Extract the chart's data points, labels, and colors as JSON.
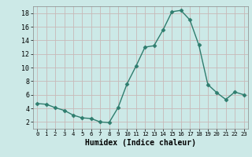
{
  "x": [
    0,
    1,
    2,
    3,
    4,
    5,
    6,
    7,
    8,
    9,
    10,
    11,
    12,
    13,
    14,
    15,
    16,
    17,
    18,
    19,
    20,
    21,
    22,
    23
  ],
  "y": [
    4.7,
    4.6,
    4.1,
    3.7,
    3.0,
    2.6,
    2.5,
    2.0,
    1.9,
    4.1,
    7.6,
    10.2,
    13.0,
    13.2,
    15.5,
    18.2,
    18.4,
    17.0,
    13.3,
    7.5,
    6.3,
    5.3,
    6.4,
    6.0
  ],
  "line_color": "#2e7d6e",
  "marker": "D",
  "marker_size": 2.5,
  "background_color": "#cce9e7",
  "grid_color": "#c8b8b8",
  "xlabel": "Humidex (Indice chaleur)",
  "xlabel_fontsize": 7,
  "tick_fontsize": 6,
  "ylim": [
    1,
    19
  ],
  "xlim": [
    -0.5,
    23.5
  ],
  "yticks": [
    2,
    4,
    6,
    8,
    10,
    12,
    14,
    16,
    18
  ],
  "xticks": [
    0,
    1,
    2,
    3,
    4,
    5,
    6,
    7,
    8,
    9,
    10,
    11,
    12,
    13,
    14,
    15,
    16,
    17,
    18,
    19,
    20,
    21,
    22,
    23
  ]
}
